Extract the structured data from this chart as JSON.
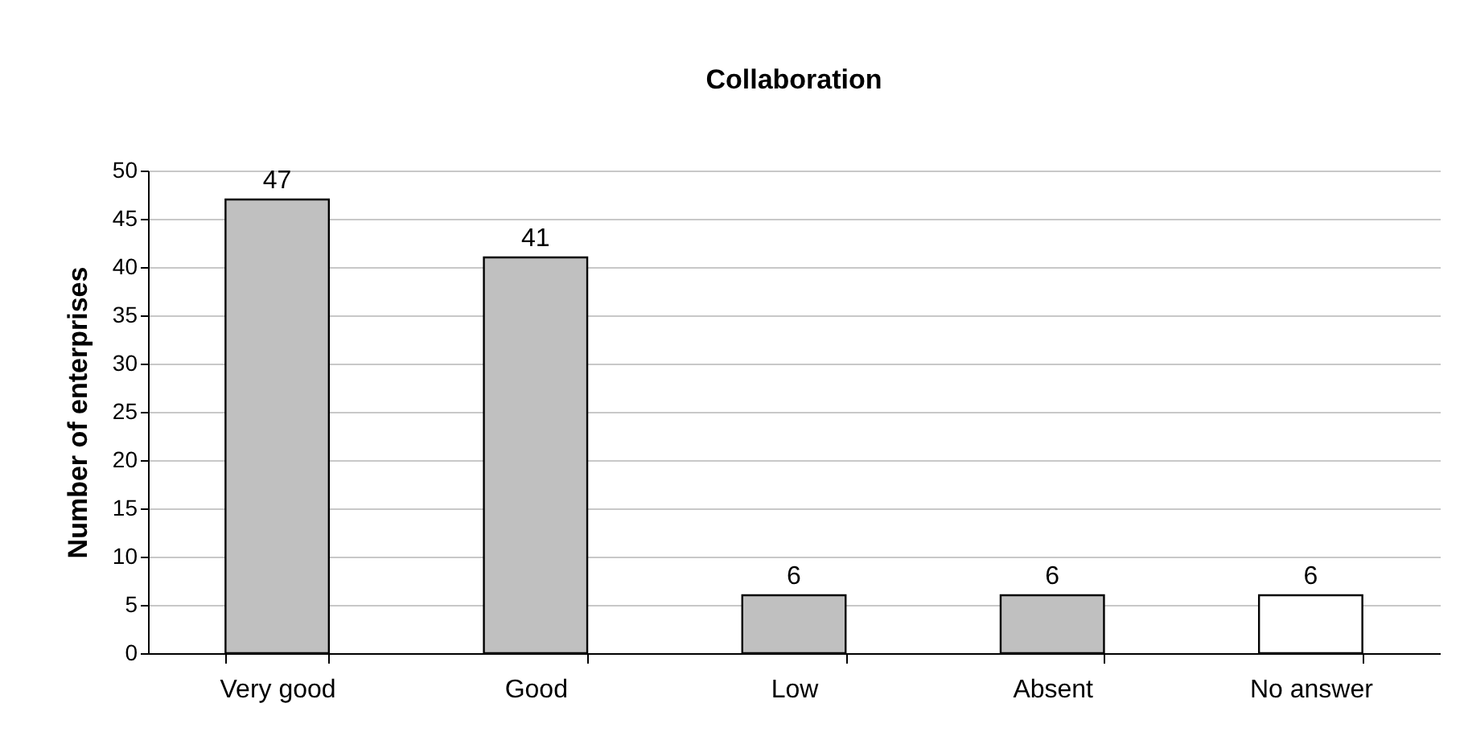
{
  "chart_data": {
    "type": "bar",
    "title": "Collaboration",
    "ylabel": "Number of enterprises",
    "categories": [
      "Very good",
      "Good",
      "Low",
      "Absent",
      "No answer"
    ],
    "values": [
      47,
      41,
      6,
      6,
      6
    ],
    "colors": [
      "#c0c0c0",
      "#c0c0c0",
      "#c0c0c0",
      "#c0c0c0",
      "#ffffff"
    ],
    "ylim": [
      0,
      50
    ],
    "yticks": [
      0,
      5,
      10,
      15,
      20,
      25,
      30,
      35,
      40,
      45,
      50
    ],
    "grid": "y",
    "data_labels": true
  }
}
